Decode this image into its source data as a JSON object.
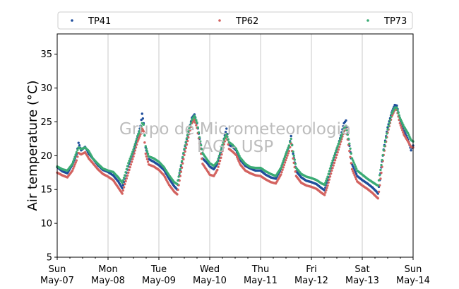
{
  "chart_data": {
    "type": "scatter",
    "xlabel": "",
    "ylabel": "Air temperature (°C)",
    "ylim": [
      5,
      38
    ],
    "xlim": [
      0,
      7
    ],
    "yticks": [
      5,
      10,
      15,
      20,
      25,
      30,
      35
    ],
    "xticks": [
      {
        "pos": 0,
        "day": "Sun",
        "date": "May-07"
      },
      {
        "pos": 1,
        "day": "Mon",
        "date": "May-08"
      },
      {
        "pos": 2,
        "day": "Tue",
        "date": "May-09"
      },
      {
        "pos": 3,
        "day": "Wed",
        "date": "May-10"
      },
      {
        "pos": 4,
        "day": "Thu",
        "date": "May-11"
      },
      {
        "pos": 5,
        "day": "Fri",
        "date": "May-12"
      },
      {
        "pos": 6,
        "day": "Sat",
        "date": "May-13"
      },
      {
        "pos": 7,
        "day": "Sun",
        "date": "May-14"
      }
    ],
    "grid": "vertical",
    "legend_position": "top",
    "watermark": [
      "Grupo de Micrometeorologia",
      "IAG - USP"
    ],
    "series": [
      {
        "name": "TP41",
        "color": "#1f4e9c",
        "points": [
          [
            0.0,
            18.3
          ],
          [
            0.1,
            17.7
          ],
          [
            0.2,
            17.4
          ],
          [
            0.3,
            18.7
          ],
          [
            0.38,
            20.2
          ],
          [
            0.42,
            21.9
          ],
          [
            0.47,
            20.8
          ],
          [
            0.55,
            21.3
          ],
          [
            0.62,
            20.3
          ],
          [
            0.7,
            19.6
          ],
          [
            0.8,
            18.6
          ],
          [
            0.9,
            17.9
          ],
          [
            1.0,
            17.6
          ],
          [
            1.1,
            17.1
          ],
          [
            1.2,
            16.2
          ],
          [
            1.28,
            15.2
          ],
          [
            1.33,
            16.6
          ],
          [
            1.4,
            18.4
          ],
          [
            1.5,
            20.6
          ],
          [
            1.58,
            22.8
          ],
          [
            1.64,
            24.4
          ],
          [
            1.67,
            26.2
          ],
          [
            1.7,
            24.8
          ],
          [
            1.74,
            21.2
          ],
          [
            1.8,
            19.5
          ],
          [
            1.9,
            19.1
          ],
          [
            2.0,
            18.6
          ],
          [
            2.1,
            17.9
          ],
          [
            2.2,
            16.6
          ],
          [
            2.3,
            15.5
          ],
          [
            2.36,
            15.0
          ],
          [
            2.42,
            17.8
          ],
          [
            2.5,
            20.9
          ],
          [
            2.58,
            23.5
          ],
          [
            2.65,
            25.6
          ],
          [
            2.7,
            26.1
          ],
          [
            2.75,
            24.8
          ],
          [
            2.8,
            22.5
          ],
          [
            2.86,
            19.6
          ],
          [
            2.95,
            18.9
          ],
          [
            3.0,
            18.4
          ],
          [
            3.08,
            18.0
          ],
          [
            3.15,
            18.8
          ],
          [
            3.22,
            20.6
          ],
          [
            3.28,
            22.5
          ],
          [
            3.33,
            24.0
          ],
          [
            3.38,
            21.6
          ],
          [
            3.45,
            21.3
          ],
          [
            3.52,
            20.8
          ],
          [
            3.6,
            19.4
          ],
          [
            3.7,
            18.5
          ],
          [
            3.8,
            18.1
          ],
          [
            3.9,
            17.8
          ],
          [
            4.0,
            17.8
          ],
          [
            4.1,
            17.2
          ],
          [
            4.2,
            16.8
          ],
          [
            4.3,
            16.6
          ],
          [
            4.4,
            18.0
          ],
          [
            4.48,
            19.8
          ],
          [
            4.56,
            21.4
          ],
          [
            4.6,
            22.9
          ],
          [
            4.64,
            20.3
          ],
          [
            4.7,
            17.7
          ],
          [
            4.8,
            16.8
          ],
          [
            4.9,
            16.3
          ],
          [
            5.0,
            16.1
          ],
          [
            5.1,
            15.8
          ],
          [
            5.2,
            15.2
          ],
          [
            5.26,
            14.9
          ],
          [
            5.32,
            16.4
          ],
          [
            5.4,
            18.6
          ],
          [
            5.5,
            20.9
          ],
          [
            5.58,
            23.0
          ],
          [
            5.64,
            24.8
          ],
          [
            5.68,
            25.2
          ],
          [
            5.73,
            22.4
          ],
          [
            5.8,
            18.7
          ],
          [
            5.9,
            17.0
          ],
          [
            6.0,
            16.4
          ],
          [
            6.1,
            15.9
          ],
          [
            6.2,
            15.3
          ],
          [
            6.28,
            14.7
          ],
          [
            6.31,
            14.4
          ],
          [
            6.36,
            17.4
          ],
          [
            6.42,
            20.9
          ],
          [
            6.5,
            24.2
          ],
          [
            6.58,
            26.4
          ],
          [
            6.64,
            27.5
          ],
          [
            6.68,
            27.4
          ],
          [
            6.74,
            25.4
          ],
          [
            6.82,
            23.7
          ],
          [
            6.9,
            22.4
          ],
          [
            6.96,
            20.8
          ],
          [
            7.0,
            21.5
          ]
        ]
      },
      {
        "name": "TP62",
        "color": "#d3625f",
        "points": [
          [
            0.0,
            17.5
          ],
          [
            0.1,
            17.1
          ],
          [
            0.2,
            16.8
          ],
          [
            0.3,
            17.8
          ],
          [
            0.38,
            19.3
          ],
          [
            0.42,
            20.4
          ],
          [
            0.47,
            20.2
          ],
          [
            0.55,
            20.5
          ],
          [
            0.62,
            19.6
          ],
          [
            0.7,
            18.9
          ],
          [
            0.8,
            18.0
          ],
          [
            0.9,
            17.3
          ],
          [
            1.0,
            16.9
          ],
          [
            1.1,
            16.4
          ],
          [
            1.2,
            15.3
          ],
          [
            1.28,
            14.4
          ],
          [
            1.33,
            15.8
          ],
          [
            1.4,
            17.5
          ],
          [
            1.5,
            19.9
          ],
          [
            1.58,
            22.1
          ],
          [
            1.64,
            23.2
          ],
          [
            1.67,
            24.0
          ],
          [
            1.7,
            23.6
          ],
          [
            1.74,
            20.3
          ],
          [
            1.8,
            18.7
          ],
          [
            1.9,
            18.4
          ],
          [
            2.0,
            17.9
          ],
          [
            2.1,
            17.1
          ],
          [
            2.2,
            15.7
          ],
          [
            2.3,
            14.7
          ],
          [
            2.36,
            14.3
          ],
          [
            2.42,
            17.0
          ],
          [
            2.5,
            20.1
          ],
          [
            2.58,
            22.7
          ],
          [
            2.65,
            24.8
          ],
          [
            2.7,
            25.3
          ],
          [
            2.75,
            24.1
          ],
          [
            2.8,
            21.8
          ],
          [
            2.86,
            18.8
          ],
          [
            2.95,
            17.8
          ],
          [
            3.0,
            17.2
          ],
          [
            3.08,
            17.0
          ],
          [
            3.15,
            17.9
          ],
          [
            3.22,
            19.7
          ],
          [
            3.28,
            21.7
          ],
          [
            3.33,
            23.0
          ],
          [
            3.38,
            21.0
          ],
          [
            3.45,
            20.6
          ],
          [
            3.52,
            20.1
          ],
          [
            3.6,
            18.7
          ],
          [
            3.7,
            17.8
          ],
          [
            3.8,
            17.4
          ],
          [
            3.9,
            17.1
          ],
          [
            4.0,
            17.0
          ],
          [
            4.1,
            16.5
          ],
          [
            4.2,
            16.1
          ],
          [
            4.3,
            15.9
          ],
          [
            4.4,
            17.2
          ],
          [
            4.48,
            19.0
          ],
          [
            4.56,
            20.7
          ],
          [
            4.6,
            21.8
          ],
          [
            4.64,
            19.6
          ],
          [
            4.7,
            17.0
          ],
          [
            4.8,
            16.0
          ],
          [
            4.9,
            15.6
          ],
          [
            5.0,
            15.4
          ],
          [
            5.1,
            15.1
          ],
          [
            5.2,
            14.5
          ],
          [
            5.26,
            14.2
          ],
          [
            5.32,
            15.6
          ],
          [
            5.4,
            17.8
          ],
          [
            5.5,
            20.1
          ],
          [
            5.58,
            22.1
          ],
          [
            5.64,
            23.6
          ],
          [
            5.68,
            24.0
          ],
          [
            5.73,
            21.6
          ],
          [
            5.8,
            18.0
          ],
          [
            5.9,
            16.2
          ],
          [
            6.0,
            15.6
          ],
          [
            6.1,
            15.1
          ],
          [
            6.2,
            14.5
          ],
          [
            6.28,
            13.9
          ],
          [
            6.31,
            13.7
          ],
          [
            6.36,
            16.6
          ],
          [
            6.42,
            20.1
          ],
          [
            6.5,
            23.4
          ],
          [
            6.58,
            25.8
          ],
          [
            6.64,
            26.8
          ],
          [
            6.68,
            26.8
          ],
          [
            6.74,
            24.8
          ],
          [
            6.82,
            23.1
          ],
          [
            6.9,
            22.1
          ],
          [
            6.96,
            21.3
          ],
          [
            7.0,
            21.2
          ]
        ]
      },
      {
        "name": "TP73",
        "color": "#3aab74",
        "points": [
          [
            0.0,
            18.4
          ],
          [
            0.1,
            18.0
          ],
          [
            0.2,
            17.8
          ],
          [
            0.3,
            18.8
          ],
          [
            0.38,
            20.5
          ],
          [
            0.42,
            21.2
          ],
          [
            0.47,
            21.0
          ],
          [
            0.55,
            21.2
          ],
          [
            0.62,
            20.7
          ],
          [
            0.7,
            19.6
          ],
          [
            0.8,
            18.8
          ],
          [
            0.9,
            18.1
          ],
          [
            1.0,
            17.8
          ],
          [
            1.1,
            17.6
          ],
          [
            1.2,
            16.8
          ],
          [
            1.28,
            16.0
          ],
          [
            1.33,
            17.1
          ],
          [
            1.4,
            18.9
          ],
          [
            1.5,
            20.9
          ],
          [
            1.58,
            22.9
          ],
          [
            1.64,
            23.9
          ],
          [
            1.67,
            24.8
          ],
          [
            1.7,
            24.6
          ],
          [
            1.74,
            21.4
          ],
          [
            1.8,
            19.9
          ],
          [
            1.9,
            19.6
          ],
          [
            2.0,
            19.1
          ],
          [
            2.1,
            18.3
          ],
          [
            2.2,
            17.1
          ],
          [
            2.3,
            16.1
          ],
          [
            2.36,
            15.8
          ],
          [
            2.42,
            18.0
          ],
          [
            2.5,
            21.0
          ],
          [
            2.58,
            23.6
          ],
          [
            2.65,
            25.3
          ],
          [
            2.7,
            25.9
          ],
          [
            2.75,
            24.9
          ],
          [
            2.8,
            22.7
          ],
          [
            2.86,
            20.4
          ],
          [
            2.95,
            19.4
          ],
          [
            3.0,
            18.9
          ],
          [
            3.08,
            18.5
          ],
          [
            3.15,
            19.1
          ],
          [
            3.22,
            20.8
          ],
          [
            3.28,
            22.4
          ],
          [
            3.33,
            23.2
          ],
          [
            3.38,
            22.0
          ],
          [
            3.45,
            21.6
          ],
          [
            3.52,
            21.0
          ],
          [
            3.6,
            19.7
          ],
          [
            3.7,
            18.8
          ],
          [
            3.8,
            18.3
          ],
          [
            3.9,
            18.2
          ],
          [
            4.0,
            18.2
          ],
          [
            4.1,
            17.7
          ],
          [
            4.2,
            17.3
          ],
          [
            4.3,
            17.0
          ],
          [
            4.4,
            18.2
          ],
          [
            4.48,
            19.9
          ],
          [
            4.56,
            21.5
          ],
          [
            4.6,
            22.5
          ],
          [
            4.64,
            20.6
          ],
          [
            4.7,
            18.2
          ],
          [
            4.8,
            17.3
          ],
          [
            4.9,
            16.9
          ],
          [
            5.0,
            16.7
          ],
          [
            5.1,
            16.4
          ],
          [
            5.2,
            15.9
          ],
          [
            5.26,
            15.7
          ],
          [
            5.32,
            16.9
          ],
          [
            5.4,
            18.9
          ],
          [
            5.5,
            21.1
          ],
          [
            5.58,
            22.7
          ],
          [
            5.64,
            24.0
          ],
          [
            5.68,
            24.4
          ],
          [
            5.73,
            22.5
          ],
          [
            5.8,
            19.6
          ],
          [
            5.9,
            17.8
          ],
          [
            6.0,
            17.2
          ],
          [
            6.1,
            16.6
          ],
          [
            6.2,
            16.1
          ],
          [
            6.28,
            15.7
          ],
          [
            6.31,
            15.6
          ],
          [
            6.36,
            17.9
          ],
          [
            6.42,
            20.8
          ],
          [
            6.5,
            23.9
          ],
          [
            6.58,
            26.2
          ],
          [
            6.64,
            27.1
          ],
          [
            6.68,
            27.1
          ],
          [
            6.74,
            25.6
          ],
          [
            6.82,
            24.3
          ],
          [
            6.9,
            23.3
          ],
          [
            6.96,
            22.3
          ],
          [
            7.0,
            22.1
          ]
        ]
      }
    ]
  }
}
